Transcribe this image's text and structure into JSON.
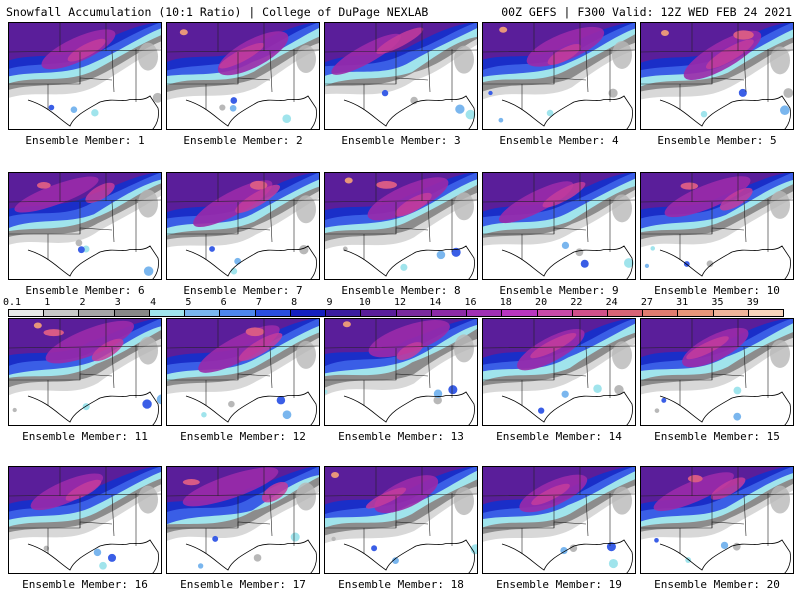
{
  "header": {
    "title_left": "Snowfall Accumulation (10:1 Ratio) | College of DuPage NEXLAB",
    "title_right": "00Z GEFS | F300 Valid: 12Z WED FEB 24 2021"
  },
  "legend": {
    "values": [
      "0.1",
      "1",
      "2",
      "3",
      "4",
      "5",
      "6",
      "7",
      "8",
      "9",
      "10",
      "12",
      "14",
      "16",
      "18",
      "20",
      "22",
      "24",
      "27",
      "31",
      "35",
      "39"
    ],
    "colors": [
      "#e8e8e8",
      "#c8c8c8",
      "#a6a6a6",
      "#888888",
      "#a0e4ec",
      "#7ab6ee",
      "#4e86ec",
      "#2a4ee0",
      "#1420c0",
      "#3a1ca0",
      "#5a1e9a",
      "#7a2a9e",
      "#8c2aa6",
      "#a030b4",
      "#b836c0",
      "#c84aa8",
      "#d0508a",
      "#d86476",
      "#e07c70",
      "#e8967a",
      "#f0b49a",
      "#f8d4bc"
    ]
  },
  "panels": [
    {
      "label": "Ensemble Member: 1"
    },
    {
      "label": "Ensemble Member: 2"
    },
    {
      "label": "Ensemble Member: 3"
    },
    {
      "label": "Ensemble Member: 4"
    },
    {
      "label": "Ensemble Member: 5"
    },
    {
      "label": "Ensemble Member: 6"
    },
    {
      "label": "Ensemble Member: 7"
    },
    {
      "label": "Ensemble Member: 8"
    },
    {
      "label": "Ensemble Member: 9"
    },
    {
      "label": "Ensemble Member: 10"
    },
    {
      "label": "Ensemble Member: 11"
    },
    {
      "label": "Ensemble Member: 12"
    },
    {
      "label": "Ensemble Member: 13"
    },
    {
      "label": "Ensemble Member: 14"
    },
    {
      "label": "Ensemble Member: 15"
    },
    {
      "label": "Ensemble Member: 16"
    },
    {
      "label": "Ensemble Member: 17"
    },
    {
      "label": "Ensemble Member: 18"
    },
    {
      "label": "Ensemble Member: 19"
    },
    {
      "label": "Ensemble Member: 20"
    }
  ]
}
